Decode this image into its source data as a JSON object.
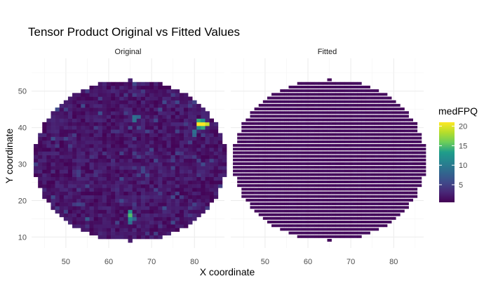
{
  "chart_data": {
    "type": "heatmap",
    "title": "Tensor Product Original vs Fitted Values",
    "xlabel": "X coordinate",
    "ylabel": "Y coordinate",
    "panels": [
      {
        "name": "Original",
        "noisy": true
      },
      {
        "name": "Fitted",
        "noisy": false
      }
    ],
    "x_domain": [
      42,
      87
    ],
    "y_domain": [
      7,
      59
    ],
    "x_ticks": [
      50,
      60,
      70,
      80
    ],
    "y_ticks": [
      10,
      20,
      30,
      40,
      50
    ],
    "wafer": {
      "cx": 65,
      "cy": 31,
      "r": 22
    },
    "color": {
      "name": "medFPQ",
      "range": [
        0.5,
        21
      ],
      "ticks": [
        5,
        10,
        15,
        20
      ],
      "palette": [
        "#440154",
        "#482777",
        "#3f4a8a",
        "#31678e",
        "#26838f",
        "#1f9d8a",
        "#6cce5a",
        "#b6de2b",
        "#fee825"
      ]
    },
    "hotspots": [
      {
        "x": 81,
        "y": 42,
        "value": 14
      },
      {
        "x": 82,
        "y": 42,
        "value": 12
      },
      {
        "x": 81,
        "y": 41,
        "value": 21
      },
      {
        "x": 82,
        "y": 41,
        "value": 21
      },
      {
        "x": 83,
        "y": 41,
        "value": 19
      },
      {
        "x": 81,
        "y": 40,
        "value": 12
      },
      {
        "x": 82,
        "y": 40,
        "value": 14
      },
      {
        "x": 80,
        "y": 39,
        "value": 9
      },
      {
        "x": 80,
        "y": 38,
        "value": 8
      },
      {
        "x": 65,
        "y": 17,
        "value": 12
      },
      {
        "x": 65,
        "y": 16,
        "value": 15
      },
      {
        "x": 65,
        "y": 15,
        "value": 11
      },
      {
        "x": 65,
        "y": 14,
        "value": 9
      },
      {
        "x": 66,
        "y": 15,
        "value": 8
      },
      {
        "x": 66,
        "y": 43,
        "value": 9
      },
      {
        "x": 67,
        "y": 43,
        "value": 8
      },
      {
        "x": 66,
        "y": 42,
        "value": 9
      },
      {
        "x": 55,
        "y": 15,
        "value": 7
      },
      {
        "x": 58,
        "y": 44,
        "value": 6
      },
      {
        "x": 73,
        "y": 18,
        "value": 6
      },
      {
        "x": 47,
        "y": 37,
        "value": 6
      }
    ]
  }
}
